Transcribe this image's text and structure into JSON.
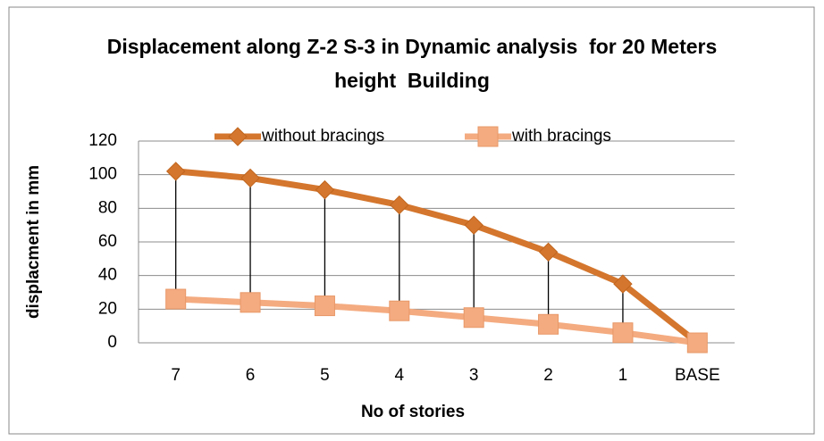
{
  "chart_data": {
    "type": "line",
    "title": "Displacement along Z-2 S-3 in Dynamic analysis  for 20 Meters height  Building",
    "x_label": "No of stories",
    "y_label": "displacment in mm",
    "categories": [
      "7",
      "6",
      "5",
      "4",
      "3",
      "2",
      "1",
      "BASE"
    ],
    "series": [
      {
        "name": "without bracings",
        "color": "#d4762d",
        "marker": "diamond",
        "values": [
          102,
          98,
          91,
          82,
          70,
          54,
          35,
          0
        ]
      },
      {
        "name": "with bracings",
        "color": "#f4ab80",
        "marker": "square",
        "values": [
          26,
          24,
          22,
          19,
          15,
          11,
          6,
          0
        ]
      }
    ],
    "ylim": [
      0,
      120
    ],
    "yticks": [
      0,
      20,
      40,
      60,
      80,
      100,
      120
    ],
    "grid": true,
    "drop_lines": true,
    "legend": "top"
  }
}
